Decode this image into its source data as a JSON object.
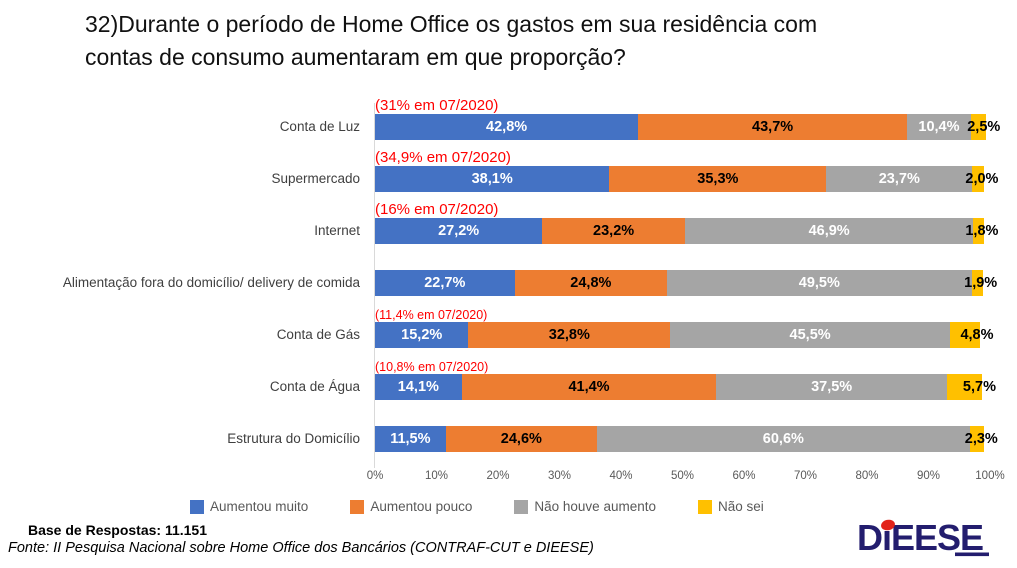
{
  "title": {
    "line1": "32)Durante o período de Home Office os gastos em sua residência com",
    "line2": "contas de consumo aumentaram em que proporção?"
  },
  "chart_data": {
    "type": "bar",
    "orientation": "horizontal",
    "stacked": true,
    "unit": "%",
    "xlim": [
      0,
      100
    ],
    "x_ticks": [
      "0%",
      "10%",
      "20%",
      "30%",
      "40%",
      "50%",
      "60%",
      "70%",
      "80%",
      "90%",
      "100%"
    ],
    "grid": false,
    "legend_position": "bottom",
    "categories": [
      "Conta de Luz",
      "Supermercado",
      "Internet",
      "Alimentação fora do domicílio/ delivery de comida",
      "Conta de Gás",
      "Conta de Água",
      "Estrutura do Domicílio"
    ],
    "series": [
      {
        "name": "Aumentou muito",
        "color": "#4472C4",
        "label_color": "#FFFFFF",
        "values": [
          42.8,
          38.1,
          27.2,
          22.7,
          15.2,
          14.1,
          11.5
        ]
      },
      {
        "name": "Aumentou pouco",
        "color": "#ED7D31",
        "label_color": "#000000",
        "values": [
          43.7,
          35.3,
          23.2,
          24.8,
          32.8,
          41.4,
          24.6
        ]
      },
      {
        "name": "Não houve aumento",
        "color": "#A5A5A5",
        "label_color": "#FFFFFF",
        "values": [
          10.4,
          23.7,
          46.9,
          49.5,
          45.5,
          37.5,
          60.6
        ]
      },
      {
        "name": "Não sei",
        "color": "#FFC000",
        "label_color": "#000000",
        "values": [
          2.5,
          2.0,
          1.8,
          1.9,
          4.8,
          5.7,
          2.3
        ]
      }
    ],
    "data_labels": [
      [
        "42,8%",
        "43,7%",
        "10,4%",
        "2,5%"
      ],
      [
        "38,1%",
        "35,3%",
        "23,7%",
        "2,0%"
      ],
      [
        "27,2%",
        "23,2%",
        "46,9%",
        "1,8%"
      ],
      [
        "22,7%",
        "24,8%",
        "49,5%",
        "1,9%"
      ],
      [
        "15,2%",
        "32,8%",
        "45,5%",
        "4,8%"
      ],
      [
        "14,1%",
        "41,4%",
        "37,5%",
        "5,7%"
      ],
      [
        "11,5%",
        "24,6%",
        "60,6%",
        "2,3%"
      ]
    ],
    "annotations": [
      {
        "row": 0,
        "text": "(31% em 07/2020)",
        "size": "large"
      },
      {
        "row": 1,
        "text": "(34,9% em 07/2020)",
        "size": "large"
      },
      {
        "row": 2,
        "text": "(16% em 07/2020)",
        "size": "large"
      },
      {
        "row": 4,
        "text": "(11,4% em 07/2020)",
        "size": "small"
      },
      {
        "row": 5,
        "text": "(10,8% em 07/2020)",
        "size": "small"
      }
    ],
    "annotation_color": "#FF0000"
  },
  "footer": {
    "base": "Base de Respostas: 11.151",
    "fonte": "Fonte: II Pesquisa Nacional sobre Home Office dos Bancários (CONTRAF-CUT e DIEESE)"
  },
  "logo": {
    "text": "DIEESE",
    "navy": "#231D6E",
    "red": "#E2231A"
  }
}
